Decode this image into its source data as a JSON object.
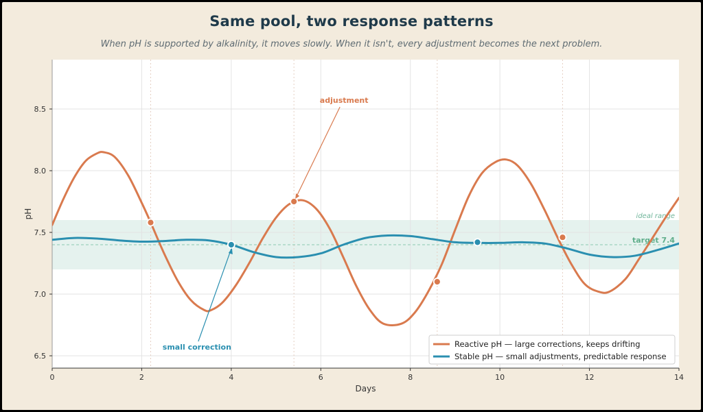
{
  "title": "Same pool, two response patterns",
  "subtitle": "When pH is supported by alkalinity, it moves slowly. When it isn't, every adjustment becomes the next problem.",
  "chart_data": {
    "type": "line",
    "xlabel": "Days",
    "ylabel": "pH",
    "xlim": [
      0,
      14
    ],
    "ylim": [
      6.4,
      8.9
    ],
    "x_ticks": [
      0,
      2,
      4,
      6,
      8,
      10,
      12,
      14
    ],
    "x_tick_labels": [
      "0",
      "2",
      "4",
      "6",
      "8",
      "10",
      "12",
      "14"
    ],
    "y_ticks": [
      6.5,
      7.0,
      7.5,
      8.0,
      8.5
    ],
    "y_tick_labels": [
      "6.5",
      "7.0",
      "7.5",
      "8.0",
      "8.5"
    ],
    "grid": true,
    "legend_position": "bottom-right",
    "ideal_range": {
      "low": 7.2,
      "high": 7.6,
      "label": "ideal range",
      "color": "#e5f2ee"
    },
    "target": {
      "value": 7.4,
      "label": "target  7.4",
      "color": "#5fae8b"
    },
    "event_days": [
      2.2,
      5.4,
      8.6,
      11.4
    ],
    "series": [
      {
        "name": "Reactive pH — large corrections, keeps drifting",
        "color": "#d97a4e",
        "x": [
          0,
          0.25,
          0.5,
          0.75,
          1.0,
          1.15,
          1.4,
          1.7,
          2.0,
          2.2,
          2.5,
          2.8,
          3.1,
          3.4,
          3.55,
          3.8,
          4.1,
          4.4,
          4.7,
          5.0,
          5.3,
          5.6,
          5.9,
          6.2,
          6.5,
          6.8,
          7.1,
          7.4,
          7.8,
          8.1,
          8.4,
          8.7,
          9.0,
          9.3,
          9.6,
          9.9,
          10.15,
          10.4,
          10.7,
          11.0,
          11.3,
          11.6,
          11.9,
          12.2,
          12.45,
          12.8,
          13.1,
          13.4,
          13.7,
          14.0
        ],
        "values": [
          7.56,
          7.77,
          7.95,
          8.08,
          8.14,
          8.15,
          8.11,
          7.96,
          7.74,
          7.58,
          7.33,
          7.11,
          6.95,
          6.87,
          6.87,
          6.93,
          7.07,
          7.25,
          7.45,
          7.62,
          7.73,
          7.76,
          7.69,
          7.53,
          7.3,
          7.06,
          6.87,
          6.76,
          6.76,
          6.85,
          7.02,
          7.24,
          7.52,
          7.79,
          7.98,
          8.07,
          8.09,
          8.04,
          7.89,
          7.68,
          7.45,
          7.24,
          7.08,
          7.02,
          7.02,
          7.12,
          7.28,
          7.45,
          7.62,
          7.78
        ],
        "markers_x": [
          2.2,
          5.4,
          8.6,
          11.4
        ],
        "markers_y": [
          7.58,
          7.75,
          7.1,
          7.46
        ]
      },
      {
        "name": "Stable pH — small adjustments, predictable response",
        "color": "#2a8fb0",
        "x": [
          0,
          0.5,
          1.0,
          1.5,
          2.0,
          2.5,
          3.0,
          3.5,
          4.0,
          4.5,
          5.0,
          5.5,
          6.0,
          6.5,
          7.0,
          7.5,
          8.0,
          8.5,
          9.0,
          9.5,
          10.0,
          10.5,
          11.0,
          11.5,
          12.0,
          12.5,
          13.0,
          13.5,
          14.0
        ],
        "values": [
          7.44,
          7.455,
          7.45,
          7.435,
          7.425,
          7.43,
          7.44,
          7.435,
          7.4,
          7.34,
          7.3,
          7.3,
          7.33,
          7.4,
          7.455,
          7.475,
          7.47,
          7.445,
          7.42,
          7.415,
          7.415,
          7.42,
          7.41,
          7.37,
          7.32,
          7.3,
          7.31,
          7.355,
          7.41
        ],
        "markers_x": [
          4.0,
          9.5
        ],
        "markers_y": [
          7.4,
          7.42
        ]
      }
    ],
    "annotations": [
      {
        "text": "adjustment",
        "x": 5.4,
        "y": 7.75,
        "color": "#d97a4e"
      },
      {
        "text": "small correction",
        "x": 4.0,
        "y": 7.4,
        "color": "#2a8fb0"
      }
    ]
  }
}
